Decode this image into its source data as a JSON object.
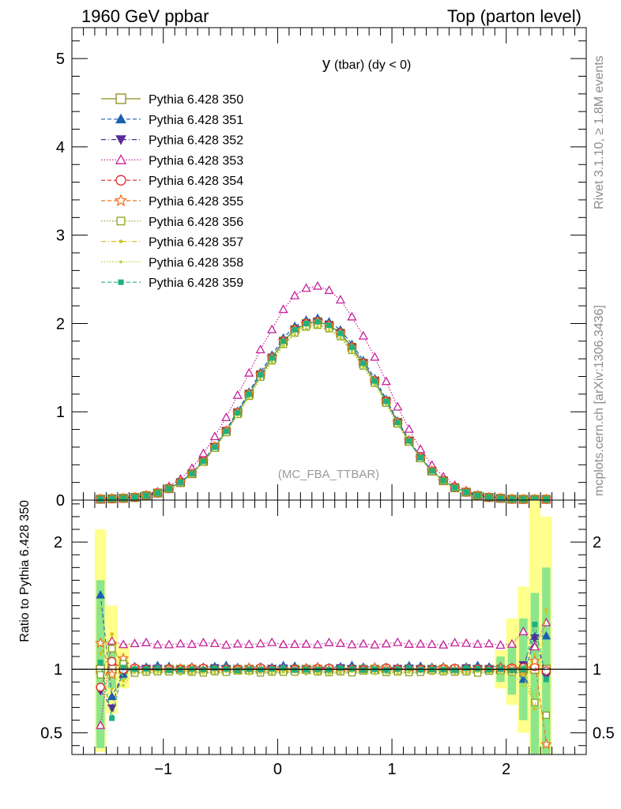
{
  "header": {
    "left": "1960 GeV ppbar",
    "right": "Top (parton level)"
  },
  "side": {
    "rivet": "Rivet 3.1.10, ≥ 1.8M events",
    "source": "mcplots.cern.ch [arXiv:1306.3436]"
  },
  "chart_data": [
    {
      "type": "line",
      "panel": "main",
      "title": "y (tbar) (dy < 0)",
      "title_parts": {
        "main": "y",
        "sub": "(tbar) (dy < 0)"
      },
      "watermark": "(MC_FBA_TTBAR)",
      "xlim": [
        -1.8,
        2.7
      ],
      "ylim": [
        0,
        5.35
      ],
      "yticks": [
        0,
        1,
        2,
        3,
        4,
        5
      ],
      "grid": false,
      "legend_position": "top-left",
      "series": [
        {
          "name": "Pythia 6.428 350",
          "color": "#8c8c1a",
          "marker": "square-open",
          "dash": "solid"
        },
        {
          "name": "Pythia 6.428 351",
          "color": "#1a5fb4",
          "marker": "triangle-up",
          "dash": "dashed"
        },
        {
          "name": "Pythia 6.428 352",
          "color": "#5a2a9a",
          "marker": "triangle-down",
          "dash": "dashdot"
        },
        {
          "name": "Pythia 6.428 353",
          "color": "#c6229a",
          "marker": "triangle-up-open",
          "dash": "dotted"
        },
        {
          "name": "Pythia 6.428 354",
          "color": "#e0202a",
          "marker": "circle-open",
          "dash": "dashed"
        },
        {
          "name": "Pythia 6.428 355",
          "color": "#f07020",
          "marker": "star-open",
          "dash": "dashed"
        },
        {
          "name": "Pythia 6.428 356",
          "color": "#8ca020",
          "marker": "square-open-small",
          "dash": "dotted"
        },
        {
          "name": "Pythia 6.428 357",
          "color": "#d8c020",
          "marker": "dot",
          "dash": "dashdot"
        },
        {
          "name": "Pythia 6.428 358",
          "color": "#b8d030",
          "marker": "dot-small",
          "dash": "dotted"
        },
        {
          "name": "Pythia 6.428 359",
          "color": "#20b080",
          "marker": "square-filled",
          "dash": "dashed"
        }
      ],
      "x": [
        -1.55,
        -1.45,
        -1.35,
        -1.25,
        -1.15,
        -1.05,
        -0.95,
        -0.85,
        -0.75,
        -0.65,
        -0.55,
        -0.45,
        -0.35,
        -0.25,
        -0.15,
        -0.05,
        0.05,
        0.15,
        0.25,
        0.35,
        0.45,
        0.55,
        0.65,
        0.75,
        0.85,
        0.95,
        1.05,
        1.15,
        1.25,
        1.35,
        1.45,
        1.55,
        1.65,
        1.75,
        1.85,
        1.95,
        2.05,
        2.15,
        2.25,
        2.35
      ],
      "reference_values": [
        0.01,
        0.015,
        0.02,
        0.03,
        0.05,
        0.08,
        0.13,
        0.2,
        0.3,
        0.44,
        0.6,
        0.78,
        0.99,
        1.2,
        1.42,
        1.61,
        1.8,
        1.93,
        2.0,
        2.02,
        1.98,
        1.89,
        1.73,
        1.55,
        1.35,
        1.12,
        0.88,
        0.67,
        0.48,
        0.33,
        0.22,
        0.14,
        0.09,
        0.05,
        0.03,
        0.02,
        0.01,
        0.006,
        0.004,
        0.003
      ],
      "ratios": [
        1.0,
        1.02,
        1.0,
        1.2,
        1.0,
        1.0,
        0.98,
        0.99,
        0.97,
        1.0
      ],
      "note": "series values = reference_values x ratios (overall level)"
    },
    {
      "type": "line",
      "panel": "ratio",
      "ylabel": "Ratio to Pythia 6.428 350",
      "xlim": [
        -1.8,
        2.7
      ],
      "ylim": [
        0.33,
        2.33
      ],
      "xticks": [
        -1,
        0,
        1,
        2
      ],
      "xtick_labels": [
        "−1",
        "0",
        "1",
        "2"
      ],
      "yticks": [
        0.5,
        1,
        2
      ],
      "ytick_labels": [
        "0.5",
        "1",
        "2"
      ],
      "reference_line": 1,
      "uncertainty_bands": [
        {
          "x": [
            -1.6,
            -1.5
          ],
          "yellow": [
            0.35,
            2.1
          ],
          "green": [
            0.38,
            1.7
          ]
        },
        {
          "x": [
            -1.5,
            -1.4
          ],
          "yellow": [
            0.65,
            1.5
          ],
          "green": [
            0.85,
            1.2
          ]
        },
        {
          "x": [
            -1.4,
            -1.3
          ],
          "yellow": [
            0.85,
            1.2
          ],
          "green": [
            0.92,
            1.1
          ]
        },
        {
          "x": [
            1.9,
            2.0
          ],
          "yellow": [
            0.85,
            1.15
          ],
          "green": [
            0.9,
            1.1
          ]
        },
        {
          "x": [
            2.0,
            2.1
          ],
          "yellow": [
            0.72,
            1.4
          ],
          "green": [
            0.8,
            1.2
          ]
        },
        {
          "x": [
            2.1,
            2.2
          ],
          "yellow": [
            0.5,
            1.65
          ],
          "green": [
            0.6,
            1.4
          ]
        },
        {
          "x": [
            2.2,
            2.3
          ],
          "yellow": [
            0.33,
            2.33
          ],
          "green": [
            0.33,
            1.6
          ]
        },
        {
          "x": [
            2.3,
            2.4
          ],
          "yellow": [
            0.33,
            2.2
          ],
          "green": [
            0.33,
            1.8
          ]
        }
      ]
    }
  ]
}
